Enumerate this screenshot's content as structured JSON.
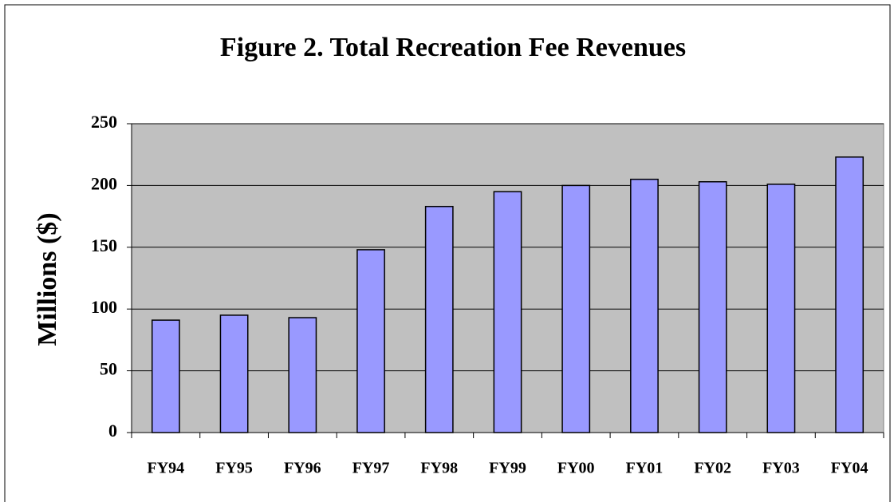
{
  "chart_data": {
    "type": "bar",
    "title": "Figure 2. Total Recreation Fee Revenues",
    "y_label": "Millions ($)",
    "categories": [
      "FY94",
      "FY95",
      "FY96",
      "FY97",
      "FY98",
      "FY99",
      "FY00",
      "FY01",
      "FY02",
      "FY03",
      "FY04"
    ],
    "values": [
      91,
      95,
      93,
      148,
      183,
      195,
      200,
      205,
      203,
      201,
      223
    ],
    "color": "#9999ff",
    "ylim": [
      0,
      250
    ],
    "yticks": [
      0,
      50,
      100,
      150,
      200,
      250
    ],
    "grid": true
  }
}
